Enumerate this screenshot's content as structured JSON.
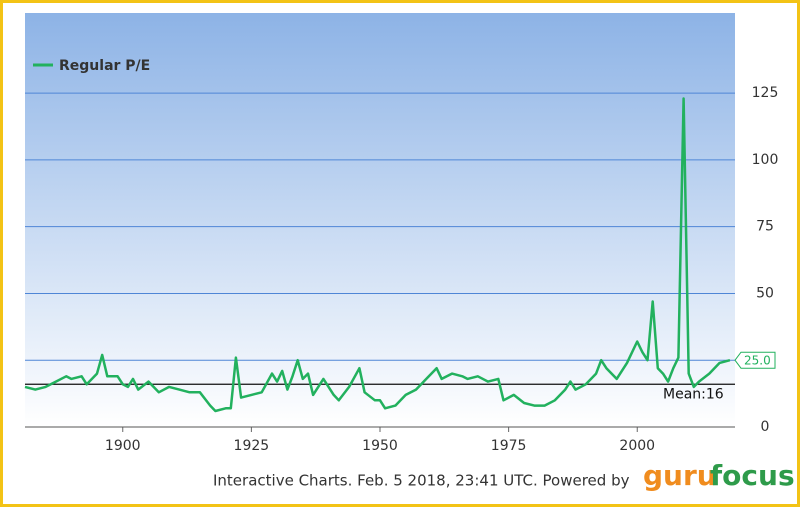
{
  "chart_data": {
    "type": "line",
    "legend_position": "upper left",
    "xlim": [
      1881,
      2019
    ],
    "ylim": [
      0,
      155
    ],
    "xticks": [
      1900,
      1925,
      1950,
      1975,
      2000
    ],
    "yticks": [
      0,
      25,
      50,
      75,
      100,
      125
    ],
    "grid": true,
    "series": [
      {
        "name": "Regular P/E",
        "color": "#22b15e",
        "x": [
          1881,
          1883,
          1885,
          1887,
          1889,
          1890,
          1892,
          1893,
          1895,
          1896,
          1897,
          1899,
          1900,
          1901,
          1902,
          1903,
          1905,
          1907,
          1909,
          1911,
          1913,
          1915,
          1917,
          1918,
          1920,
          1921,
          1922,
          1923,
          1925,
          1927,
          1929,
          1930,
          1931,
          1932,
          1933,
          1934,
          1935,
          1936,
          1937,
          1939,
          1941,
          1942,
          1944,
          1946,
          1947,
          1949,
          1950,
          1951,
          1953,
          1955,
          1957,
          1959,
          1961,
          1962,
          1964,
          1966,
          1967,
          1969,
          1971,
          1973,
          1974,
          1976,
          1978,
          1980,
          1982,
          1984,
          1986,
          1987,
          1988,
          1990,
          1992,
          1993,
          1994,
          1996,
          1998,
          2000,
          2001,
          2002,
          2003,
          2004,
          2005,
          2006,
          2007,
          2008,
          2009,
          2010,
          2011,
          2012,
          2014,
          2016,
          2018
        ],
        "values": [
          15,
          14,
          15,
          17,
          19,
          18,
          19,
          16,
          20,
          27,
          19,
          19,
          16,
          15,
          18,
          14,
          17,
          13,
          15,
          14,
          13,
          13,
          8,
          6,
          7,
          7,
          26,
          11,
          12,
          13,
          20,
          17,
          21,
          14,
          19,
          25,
          18,
          20,
          12,
          18,
          12,
          10,
          15,
          22,
          13,
          10,
          10,
          7,
          8,
          12,
          14,
          18,
          22,
          18,
          20,
          19,
          18,
          19,
          17,
          18,
          10,
          12,
          9,
          8,
          8,
          10,
          14,
          17,
          14,
          16,
          20,
          25,
          22,
          18,
          24,
          32,
          28,
          25,
          47,
          22,
          20,
          17,
          22,
          26,
          123,
          20,
          15,
          17,
          20,
          24,
          25
        ]
      }
    ],
    "current": {
      "value": 25.0,
      "label": "25.0"
    },
    "mean": {
      "value": 16,
      "label": "Mean:16"
    },
    "footer": "Interactive Charts. Feb. 5 2018, 23:41 UTC. Powered by",
    "logo": {
      "part1": "guru",
      "part2": "focus"
    }
  }
}
